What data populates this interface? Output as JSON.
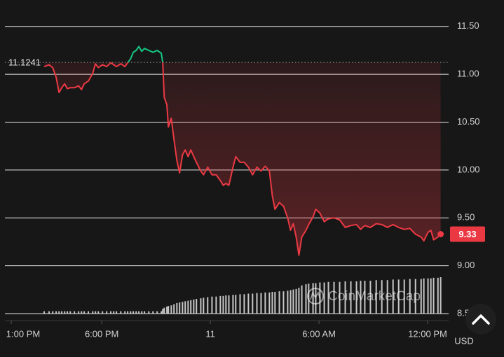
{
  "chart_data": {
    "type": "line",
    "x": [
      14.82,
      15.09,
      15.29,
      15.48,
      15.64,
      15.79,
      15.95,
      16.1,
      16.26,
      16.49,
      16.72,
      16.88,
      17.03,
      17.26,
      17.5,
      17.65,
      17.81,
      18.04,
      18.27,
      18.5,
      18.66,
      18.81,
      19.05,
      19.28,
      19.43,
      19.59,
      19.74,
      19.9,
      20.05,
      20.21,
      20.36,
      20.6,
      20.83,
      21.06,
      21.29,
      21.37,
      21.45,
      21.6,
      21.68,
      21.84,
      21.99,
      22.15,
      22.3,
      22.46,
      22.61,
      22.77,
      22.92,
      23.08,
      23.23,
      23.47,
      23.62,
      23.85,
      24.09,
      24.32,
      24.55,
      24.71,
      24.86,
      25.02,
      25.25,
      25.4,
      25.64,
      25.87,
      26.1,
      26.33,
      26.57,
      26.8,
      27.03,
      27.26,
      27.42,
      27.57,
      27.81,
      28.04,
      28.27,
      28.43,
      28.58,
      28.74,
      28.89,
      29.05,
      29.28,
      29.43,
      29.67,
      29.82,
      30.05,
      30.29,
      30.52,
      30.83,
      31.14,
      31.45,
      31.76,
      32.07,
      32.3,
      32.53,
      32.84,
      33.16,
      33.47,
      33.78,
      34.09,
      34.4,
      34.71,
      35.02,
      35.33,
      35.64,
      35.79,
      36.02,
      36.18,
      36.33,
      36.57,
      36.72
    ],
    "values": [
      11.08,
      11.1,
      11.07,
      10.97,
      10.81,
      10.86,
      10.9,
      10.85,
      10.86,
      10.86,
      10.88,
      10.84,
      10.9,
      10.93,
      11.01,
      11.11,
      11.07,
      11.1,
      11.08,
      11.12,
      11.1,
      11.08,
      11.11,
      11.08,
      11.12,
      11.16,
      11.23,
      11.25,
      11.29,
      11.24,
      11.27,
      11.25,
      11.23,
      11.25,
      11.22,
      11.12,
      10.76,
      10.68,
      10.45,
      10.54,
      10.32,
      10.1,
      9.97,
      10.16,
      10.21,
      10.14,
      10.21,
      10.14,
      10.08,
      9.99,
      9.95,
      10.03,
      9.95,
      9.95,
      9.89,
      9.84,
      9.86,
      9.84,
      10.03,
      10.14,
      10.08,
      10.08,
      10.03,
      9.95,
      10.03,
      9.99,
      10.04,
      9.99,
      9.73,
      9.59,
      9.66,
      9.62,
      9.5,
      9.37,
      9.44,
      9.3,
      9.11,
      9.3,
      9.37,
      9.43,
      9.51,
      9.59,
      9.55,
      9.46,
      9.49,
      9.5,
      9.48,
      9.4,
      9.42,
      9.43,
      9.38,
      9.42,
      9.4,
      9.44,
      9.43,
      9.4,
      9.43,
      9.4,
      9.38,
      9.39,
      9.33,
      9.3,
      9.26,
      9.35,
      9.37,
      9.27,
      9.3,
      9.33
    ],
    "volume": [
      4,
      4,
      4,
      4,
      4,
      4,
      4,
      4,
      4,
      4,
      4,
      4,
      4,
      4,
      4,
      4,
      4,
      4,
      4,
      4,
      4,
      4,
      4,
      4,
      4,
      4,
      4,
      4,
      4,
      4,
      4,
      4,
      4,
      4,
      4,
      8,
      10,
      12,
      13,
      14,
      16,
      18,
      19,
      20,
      21,
      22,
      23,
      24,
      25,
      26,
      27,
      28,
      29,
      29,
      30,
      30,
      31,
      31,
      32,
      32,
      33,
      33,
      34,
      34,
      35,
      35,
      36,
      36,
      37,
      37,
      38,
      38,
      39,
      40,
      41,
      42,
      44,
      48,
      50,
      51,
      52,
      52,
      53,
      53,
      54,
      54,
      54,
      55,
      55,
      55,
      56,
      56,
      56,
      57,
      57,
      57,
      58,
      58,
      58,
      59,
      59,
      59,
      60,
      60,
      60,
      61,
      61,
      62
    ],
    "up_color": "#16c784",
    "down_color": "#ea3943",
    "volume_color": "#e6e6e6",
    "reference_price": 11.1241,
    "current_price": 9.33,
    "currency": "USD",
    "watermark": "CoinMarketCap",
    "xlim": [
      12.65,
      37.16
    ],
    "xticks": [
      {
        "value": 13,
        "label": "1:00 PM"
      },
      {
        "value": 18,
        "label": "6:00 PM"
      },
      {
        "value": 24,
        "label": "11"
      },
      {
        "value": 30,
        "label": "6:00 AM"
      },
      {
        "value": 36,
        "label": "12:00 PM"
      }
    ],
    "ylim": [
      8.5,
      11.63
    ],
    "yticks": [
      {
        "value": 8.5,
        "label": "8.50"
      },
      {
        "value": 9,
        "label": "9.00"
      },
      {
        "value": 9.5,
        "label": "9.50"
      },
      {
        "value": 10,
        "label": "10.00"
      },
      {
        "value": 10.5,
        "label": "10.50"
      },
      {
        "value": 11,
        "label": "11.00"
      },
      {
        "value": 11.5,
        "label": "11.50"
      }
    ],
    "grid": true
  }
}
